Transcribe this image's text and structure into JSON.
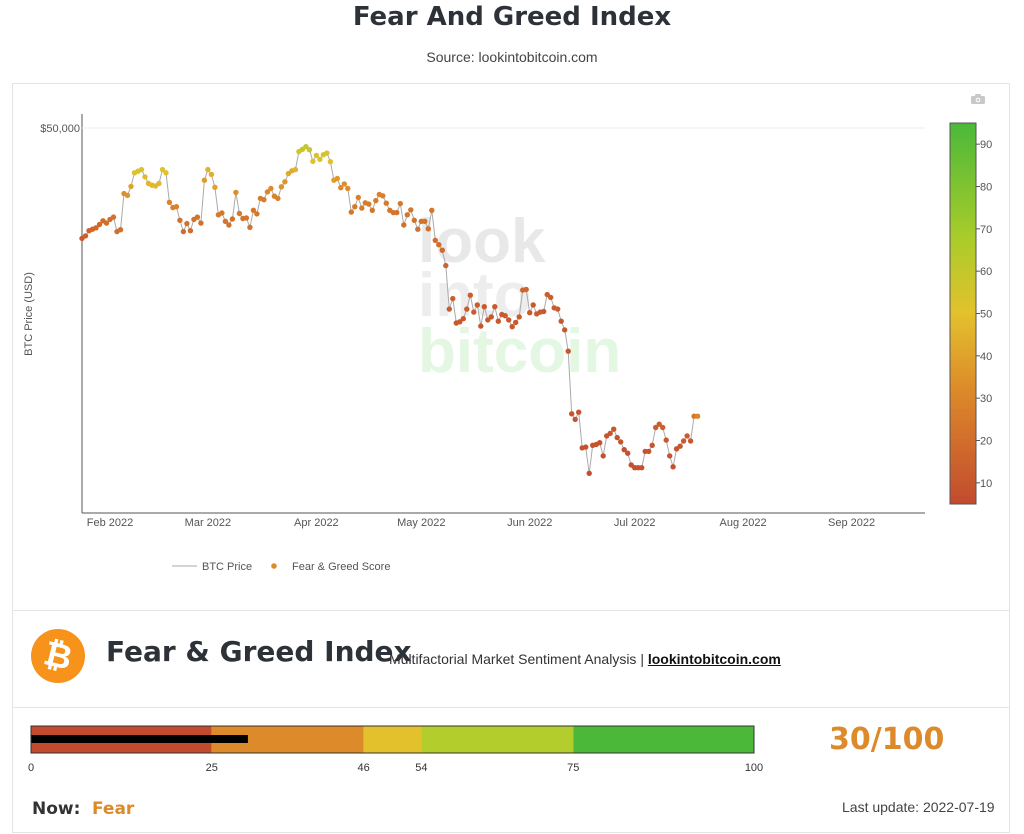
{
  "page": {
    "title": "Fear And Greed Index",
    "source": "Source: lookintobitcoin.com"
  },
  "watermark": {
    "line1": "look",
    "line2": "into",
    "line3": "bitcoin"
  },
  "icons": {
    "camera": "camera-icon",
    "logo": "bitcoin-logo"
  },
  "chart_data": {
    "type": "line",
    "title": "",
    "ylabel": "BTC Price (USD)",
    "xlabel": "",
    "y_scale": "log",
    "ylim": [
      17000,
      52000
    ],
    "xlim": [
      "2022-01-24",
      "2022-09-22"
    ],
    "y_ticks": [
      {
        "value": 50000,
        "label": "$50,000"
      }
    ],
    "x_ticks": [
      {
        "date": "2022-02-01",
        "label": "Feb 2022"
      },
      {
        "date": "2022-03-01",
        "label": "Mar 2022"
      },
      {
        "date": "2022-04-01",
        "label": "Apr 2022"
      },
      {
        "date": "2022-05-01",
        "label": "May 2022"
      },
      {
        "date": "2022-06-01",
        "label": "Jun 2022"
      },
      {
        "date": "2022-07-01",
        "label": "Jul 2022"
      },
      {
        "date": "2022-08-01",
        "label": "Aug 2022"
      },
      {
        "date": "2022-09-01",
        "label": "Sep 2022"
      }
    ],
    "grid": false,
    "legend": {
      "placement": "bottom-left"
    },
    "series": [
      {
        "name": "BTC Price",
        "kind": "line",
        "color": "#aaaaaa"
      },
      {
        "name": "Fear & Greed Score",
        "kind": "markers",
        "color": "#dd8a2a"
      }
    ],
    "colorbar": {
      "min": 5,
      "max": 95,
      "ticks": [
        10,
        20,
        30,
        40,
        50,
        60,
        70,
        80,
        90
      ],
      "colors": [
        "#c24b2e",
        "#dd8a2a",
        "#e3c12c",
        "#a9cc2a",
        "#4bb83a"
      ]
    },
    "points": [
      {
        "date": "2022-01-24",
        "price": 36700,
        "score": 12
      },
      {
        "date": "2022-01-25",
        "price": 36950,
        "score": 14
      },
      {
        "date": "2022-01-26",
        "price": 37500,
        "score": 15
      },
      {
        "date": "2022-01-27",
        "price": 37650,
        "score": 16
      },
      {
        "date": "2022-01-28",
        "price": 37800,
        "score": 18
      },
      {
        "date": "2022-01-29",
        "price": 38150,
        "score": 18
      },
      {
        "date": "2022-01-30",
        "price": 38550,
        "score": 19
      },
      {
        "date": "2022-01-31",
        "price": 38300,
        "score": 20
      },
      {
        "date": "2022-02-01",
        "price": 38700,
        "score": 20
      },
      {
        "date": "2022-02-02",
        "price": 38950,
        "score": 21
      },
      {
        "date": "2022-02-03",
        "price": 37400,
        "score": 20
      },
      {
        "date": "2022-02-04",
        "price": 37600,
        "score": 21
      },
      {
        "date": "2022-02-05",
        "price": 41600,
        "score": 33
      },
      {
        "date": "2022-02-06",
        "price": 41400,
        "score": 35
      },
      {
        "date": "2022-02-07",
        "price": 42450,
        "score": 40
      },
      {
        "date": "2022-02-08",
        "price": 44100,
        "score": 51
      },
      {
        "date": "2022-02-09",
        "price": 44300,
        "score": 52
      },
      {
        "date": "2022-02-10",
        "price": 44500,
        "score": 53
      },
      {
        "date": "2022-02-11",
        "price": 43600,
        "score": 48
      },
      {
        "date": "2022-02-12",
        "price": 42800,
        "score": 46
      },
      {
        "date": "2022-02-13",
        "price": 42600,
        "score": 46
      },
      {
        "date": "2022-02-14",
        "price": 42500,
        "score": 47
      },
      {
        "date": "2022-02-15",
        "price": 42800,
        "score": 47
      },
      {
        "date": "2022-02-16",
        "price": 44500,
        "score": 52
      },
      {
        "date": "2022-02-17",
        "price": 44100,
        "score": 51
      },
      {
        "date": "2022-02-18",
        "price": 40600,
        "score": 30
      },
      {
        "date": "2022-02-19",
        "price": 40000,
        "score": 28
      },
      {
        "date": "2022-02-20",
        "price": 40100,
        "score": 28
      },
      {
        "date": "2022-02-21",
        "price": 38600,
        "score": 22
      },
      {
        "date": "2022-02-22",
        "price": 37400,
        "score": 20
      },
      {
        "date": "2022-02-23",
        "price": 38250,
        "score": 21
      },
      {
        "date": "2022-02-24",
        "price": 37500,
        "score": 20
      },
      {
        "date": "2022-02-25",
        "price": 38700,
        "score": 21
      },
      {
        "date": "2022-02-26",
        "price": 38950,
        "score": 22
      },
      {
        "date": "2022-02-27",
        "price": 38300,
        "score": 21
      },
      {
        "date": "2022-02-28",
        "price": 43200,
        "score": 38
      },
      {
        "date": "2022-03-01",
        "price": 44500,
        "score": 45
      },
      {
        "date": "2022-03-02",
        "price": 43900,
        "score": 43
      },
      {
        "date": "2022-03-03",
        "price": 42350,
        "score": 40
      },
      {
        "date": "2022-03-04",
        "price": 39200,
        "score": 25
      },
      {
        "date": "2022-03-05",
        "price": 39400,
        "score": 24
      },
      {
        "date": "2022-03-06",
        "price": 38500,
        "score": 23
      },
      {
        "date": "2022-03-07",
        "price": 38100,
        "score": 22
      },
      {
        "date": "2022-03-08",
        "price": 38750,
        "score": 22
      },
      {
        "date": "2022-03-09",
        "price": 41750,
        "score": 33
      },
      {
        "date": "2022-03-10",
        "price": 39350,
        "score": 25
      },
      {
        "date": "2022-03-11",
        "price": 38800,
        "score": 23
      },
      {
        "date": "2022-03-12",
        "price": 38850,
        "score": 23
      },
      {
        "date": "2022-03-13",
        "price": 37850,
        "score": 22
      },
      {
        "date": "2022-03-14",
        "price": 39700,
        "score": 24
      },
      {
        "date": "2022-03-15",
        "price": 39300,
        "score": 24
      },
      {
        "date": "2022-03-16",
        "price": 41050,
        "score": 27
      },
      {
        "date": "2022-03-17",
        "price": 40900,
        "score": 27
      },
      {
        "date": "2022-03-18",
        "price": 41800,
        "score": 30
      },
      {
        "date": "2022-03-19",
        "price": 42200,
        "score": 32
      },
      {
        "date": "2022-03-20",
        "price": 41300,
        "score": 29
      },
      {
        "date": "2022-03-21",
        "price": 41050,
        "score": 28
      },
      {
        "date": "2022-03-22",
        "price": 42400,
        "score": 34
      },
      {
        "date": "2022-03-23",
        "price": 43000,
        "score": 36
      },
      {
        "date": "2022-03-24",
        "price": 44000,
        "score": 42
      },
      {
        "date": "2022-03-25",
        "price": 44350,
        "score": 43
      },
      {
        "date": "2022-03-26",
        "price": 44500,
        "score": 45
      },
      {
        "date": "2022-03-27",
        "price": 46800,
        "score": 56
      },
      {
        "date": "2022-03-28",
        "price": 47100,
        "score": 58
      },
      {
        "date": "2022-03-29",
        "price": 47450,
        "score": 60
      },
      {
        "date": "2022-03-30",
        "price": 47050,
        "score": 58
      },
      {
        "date": "2022-03-31",
        "price": 45550,
        "score": 51
      },
      {
        "date": "2022-04-01",
        "price": 46300,
        "score": 53
      },
      {
        "date": "2022-04-02",
        "price": 45800,
        "score": 52
      },
      {
        "date": "2022-04-03",
        "price": 46400,
        "score": 54
      },
      {
        "date": "2022-04-04",
        "price": 46600,
        "score": 55
      },
      {
        "date": "2022-04-05",
        "price": 45500,
        "score": 50
      },
      {
        "date": "2022-04-06",
        "price": 43200,
        "score": 38
      },
      {
        "date": "2022-04-07",
        "price": 43400,
        "score": 37
      },
      {
        "date": "2022-04-08",
        "price": 42300,
        "score": 32
      },
      {
        "date": "2022-04-09",
        "price": 42750,
        "score": 33
      },
      {
        "date": "2022-04-10",
        "price": 42200,
        "score": 32
      },
      {
        "date": "2022-04-11",
        "price": 39500,
        "score": 24
      },
      {
        "date": "2022-04-12",
        "price": 40100,
        "score": 25
      },
      {
        "date": "2022-04-13",
        "price": 41150,
        "score": 28
      },
      {
        "date": "2022-04-14",
        "price": 39950,
        "score": 25
      },
      {
        "date": "2022-04-15",
        "price": 40550,
        "score": 26
      },
      {
        "date": "2022-04-16",
        "price": 40400,
        "score": 26
      },
      {
        "date": "2022-04-17",
        "price": 39700,
        "score": 24
      },
      {
        "date": "2022-04-18",
        "price": 40800,
        "score": 26
      },
      {
        "date": "2022-04-19",
        "price": 41500,
        "score": 28
      },
      {
        "date": "2022-04-20",
        "price": 41350,
        "score": 28
      },
      {
        "date": "2022-04-21",
        "price": 40500,
        "score": 26
      },
      {
        "date": "2022-04-22",
        "price": 39700,
        "score": 24
      },
      {
        "date": "2022-04-23",
        "price": 39450,
        "score": 23
      },
      {
        "date": "2022-04-24",
        "price": 39450,
        "score": 23
      },
      {
        "date": "2022-04-25",
        "price": 40450,
        "score": 25
      },
      {
        "date": "2022-04-26",
        "price": 38100,
        "score": 21
      },
      {
        "date": "2022-04-27",
        "price": 39200,
        "score": 23
      },
      {
        "date": "2022-04-28",
        "price": 39750,
        "score": 24
      },
      {
        "date": "2022-04-29",
        "price": 38600,
        "score": 22
      },
      {
        "date": "2022-04-30",
        "price": 37650,
        "score": 21
      },
      {
        "date": "2022-05-01",
        "price": 38500,
        "score": 22
      },
      {
        "date": "2022-05-02",
        "price": 38500,
        "score": 22
      },
      {
        "date": "2022-05-03",
        "price": 37700,
        "score": 21
      },
      {
        "date": "2022-05-04",
        "price": 39700,
        "score": 24
      },
      {
        "date": "2022-05-05",
        "price": 36500,
        "score": 20
      },
      {
        "date": "2022-05-06",
        "price": 36050,
        "score": 20
      },
      {
        "date": "2022-05-07",
        "price": 35500,
        "score": 18
      },
      {
        "date": "2022-05-08",
        "price": 34000,
        "score": 16
      },
      {
        "date": "2022-05-09",
        "price": 30100,
        "score": 12
      },
      {
        "date": "2022-05-10",
        "price": 31000,
        "score": 13
      },
      {
        "date": "2022-05-11",
        "price": 28950,
        "score": 11
      },
      {
        "date": "2022-05-12",
        "price": 29050,
        "score": 11
      },
      {
        "date": "2022-05-13",
        "price": 29300,
        "score": 11
      },
      {
        "date": "2022-05-14",
        "price": 30100,
        "score": 12
      },
      {
        "date": "2022-05-15",
        "price": 31300,
        "score": 13
      },
      {
        "date": "2022-05-16",
        "price": 29850,
        "score": 12
      },
      {
        "date": "2022-05-17",
        "price": 30450,
        "score": 12
      },
      {
        "date": "2022-05-18",
        "price": 28700,
        "score": 11
      },
      {
        "date": "2022-05-19",
        "price": 30300,
        "score": 12
      },
      {
        "date": "2022-05-20",
        "price": 29200,
        "score": 11
      },
      {
        "date": "2022-05-21",
        "price": 29450,
        "score": 11
      },
      {
        "date": "2022-05-22",
        "price": 30300,
        "score": 12
      },
      {
        "date": "2022-05-23",
        "price": 29100,
        "score": 11
      },
      {
        "date": "2022-05-24",
        "price": 29650,
        "score": 12
      },
      {
        "date": "2022-05-25",
        "price": 29550,
        "score": 12
      },
      {
        "date": "2022-05-26",
        "price": 29200,
        "score": 11
      },
      {
        "date": "2022-05-27",
        "price": 28650,
        "score": 11
      },
      {
        "date": "2022-05-28",
        "price": 29000,
        "score": 11
      },
      {
        "date": "2022-05-29",
        "price": 29450,
        "score": 12
      },
      {
        "date": "2022-05-30",
        "price": 31750,
        "score": 16
      },
      {
        "date": "2022-05-31",
        "price": 31800,
        "score": 16
      },
      {
        "date": "2022-06-01",
        "price": 29800,
        "score": 12
      },
      {
        "date": "2022-06-02",
        "price": 30450,
        "score": 12
      },
      {
        "date": "2022-06-03",
        "price": 29700,
        "score": 12
      },
      {
        "date": "2022-06-04",
        "price": 29850,
        "score": 12
      },
      {
        "date": "2022-06-05",
        "price": 29900,
        "score": 12
      },
      {
        "date": "2022-06-06",
        "price": 31350,
        "score": 13
      },
      {
        "date": "2022-06-07",
        "price": 31100,
        "score": 13
      },
      {
        "date": "2022-06-08",
        "price": 30200,
        "score": 12
      },
      {
        "date": "2022-06-09",
        "price": 30100,
        "score": 12
      },
      {
        "date": "2022-06-10",
        "price": 29100,
        "score": 11
      },
      {
        "date": "2022-06-11",
        "price": 28400,
        "score": 11
      },
      {
        "date": "2022-06-12",
        "price": 26750,
        "score": 10
      },
      {
        "date": "2022-06-13",
        "price": 22450,
        "score": 9
      },
      {
        "date": "2022-06-14",
        "price": 22100,
        "score": 9
      },
      {
        "date": "2022-06-15",
        "price": 22550,
        "score": 9
      },
      {
        "date": "2022-06-16",
        "price": 20400,
        "score": 8
      },
      {
        "date": "2022-06-17",
        "price": 20450,
        "score": 8
      },
      {
        "date": "2022-06-18",
        "price": 19000,
        "score": 7
      },
      {
        "date": "2022-06-19",
        "price": 20550,
        "score": 8
      },
      {
        "date": "2022-06-20",
        "price": 20600,
        "score": 8
      },
      {
        "date": "2022-06-21",
        "price": 20700,
        "score": 8
      },
      {
        "date": "2022-06-22",
        "price": 19950,
        "score": 8
      },
      {
        "date": "2022-06-23",
        "price": 21100,
        "score": 9
      },
      {
        "date": "2022-06-24",
        "price": 21250,
        "score": 10
      },
      {
        "date": "2022-06-25",
        "price": 21500,
        "score": 10
      },
      {
        "date": "2022-06-26",
        "price": 21000,
        "score": 9
      },
      {
        "date": "2022-06-27",
        "price": 20750,
        "score": 9
      },
      {
        "date": "2022-06-28",
        "price": 20300,
        "score": 8
      },
      {
        "date": "2022-06-29",
        "price": 20100,
        "score": 8
      },
      {
        "date": "2022-06-30",
        "price": 19450,
        "score": 8
      },
      {
        "date": "2022-07-01",
        "price": 19300,
        "score": 8
      },
      {
        "date": "2022-07-02",
        "price": 19300,
        "score": 8
      },
      {
        "date": "2022-07-03",
        "price": 19300,
        "score": 8
      },
      {
        "date": "2022-07-04",
        "price": 20200,
        "score": 9
      },
      {
        "date": "2022-07-05",
        "price": 20200,
        "score": 9
      },
      {
        "date": "2022-07-06",
        "price": 20550,
        "score": 10
      },
      {
        "date": "2022-07-07",
        "price": 21600,
        "score": 13
      },
      {
        "date": "2022-07-08",
        "price": 21800,
        "score": 14
      },
      {
        "date": "2022-07-09",
        "price": 21600,
        "score": 14
      },
      {
        "date": "2022-07-10",
        "price": 20850,
        "score": 11
      },
      {
        "date": "2022-07-11",
        "price": 19950,
        "score": 9
      },
      {
        "date": "2022-07-12",
        "price": 19350,
        "score": 8
      },
      {
        "date": "2022-07-13",
        "price": 20350,
        "score": 9
      },
      {
        "date": "2022-07-14",
        "price": 20500,
        "score": 10
      },
      {
        "date": "2022-07-15",
        "price": 20800,
        "score": 11
      },
      {
        "date": "2022-07-16",
        "price": 21100,
        "score": 12
      },
      {
        "date": "2022-07-17",
        "price": 20800,
        "score": 11
      },
      {
        "date": "2022-07-18",
        "price": 22300,
        "score": 24
      },
      {
        "date": "2022-07-19",
        "price": 22300,
        "score": 30
      }
    ]
  },
  "brand": {
    "title": "Fear & Greed Index",
    "subtitle": "Multifactorial Market Sentiment Analysis | ",
    "link": "lookintobitcoin.com"
  },
  "gauge": {
    "value": 30,
    "max": 100,
    "score_text": "30/100",
    "segments": [
      {
        "from": 0,
        "to": 25,
        "color": "#c24b2e"
      },
      {
        "from": 25,
        "to": 46,
        "color": "#dd8a2a"
      },
      {
        "from": 46,
        "to": 54,
        "color": "#e3c12c"
      },
      {
        "from": 54,
        "to": 75,
        "color": "#b2cd2c"
      },
      {
        "from": 75,
        "to": 100,
        "color": "#4bb83a"
      }
    ],
    "tick_labels": [
      "0",
      "25",
      "46",
      "54",
      "75",
      "100"
    ],
    "tick_values": [
      0,
      25,
      46,
      54,
      75,
      100
    ],
    "now_label": "Now:",
    "now_value": "Fear",
    "last_update": "Last update: 2022-07-19"
  },
  "colors": {
    "accent": "#dd8a2a",
    "fear": "#c24b2e",
    "greed": "#4bb83a",
    "bitcoin": "#f7931a"
  }
}
